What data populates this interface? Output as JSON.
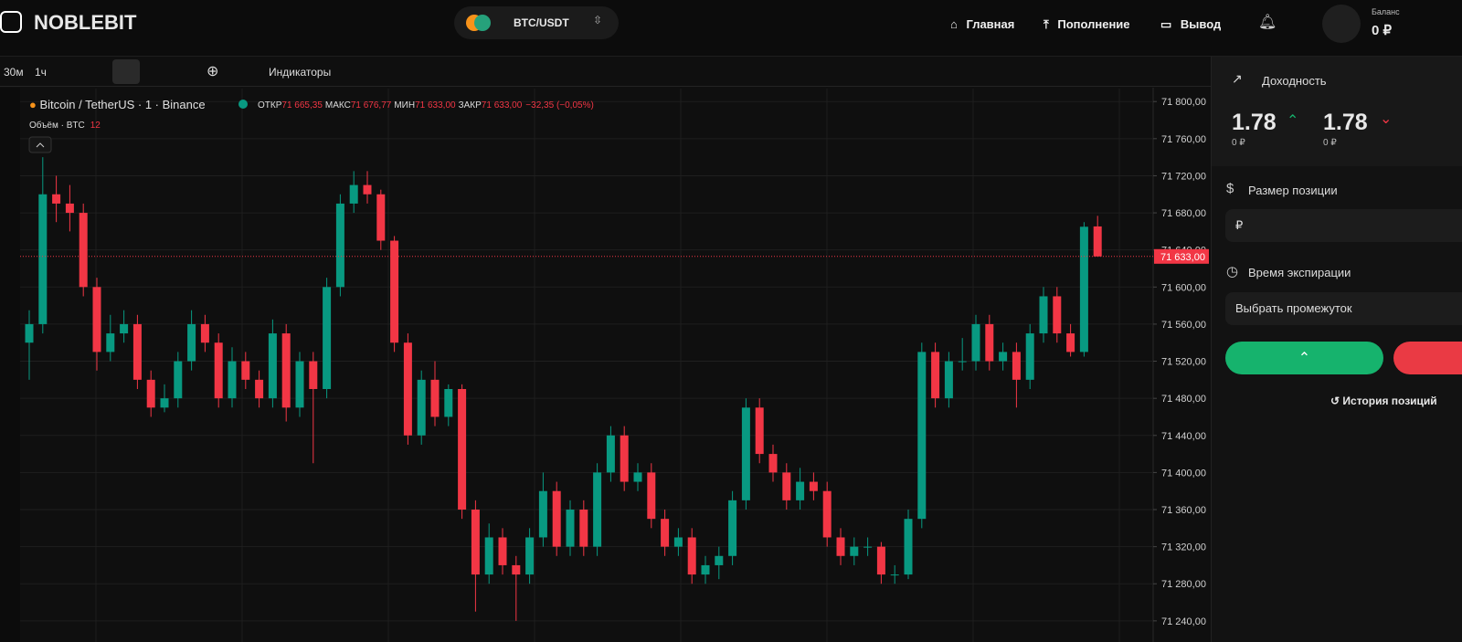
{
  "header": {
    "logo": "NOBLEBIT",
    "pair": "BTC/USDT",
    "nav": [
      "Главная",
      "Пополнение",
      "Вывод"
    ],
    "balance_label": "Баланс",
    "balance": "0 ₽"
  },
  "toolbar": {
    "intervals": [
      "30м",
      "1ч"
    ],
    "indicators": "Индикаторы"
  },
  "legend": {
    "symbol": "Bitcoin / TetherUS · 1 · Binance",
    "open_label": "ОТКР",
    "open": "71 665,35",
    "high_label": "МАКС",
    "high": "71 676,77",
    "low_label": "МИН",
    "low": "71 633,00",
    "close_label": "ЗАКР",
    "close": "71 633,00",
    "change": "−32,35 (−0,05%)",
    "volume_label": "Объём · BTC",
    "volume": "12"
  },
  "chart_data": {
    "type": "candlestick",
    "ylim": [
      71231,
      71814
    ],
    "yticks": [
      {
        "value": 71240,
        "label": "71 240,00"
      },
      {
        "value": 71280,
        "label": "71 280,00"
      },
      {
        "value": 71320,
        "label": "71 320,00"
      },
      {
        "value": 71360,
        "label": "71 360,00"
      },
      {
        "value": 71400,
        "label": "71 400,00"
      },
      {
        "value": 71440,
        "label": "71 440,00"
      },
      {
        "value": 71480,
        "label": "71 480,00"
      },
      {
        "value": 71520,
        "label": "71 520,00"
      },
      {
        "value": 71560,
        "label": "71 560,00"
      },
      {
        "value": 71600,
        "label": "71 600,00"
      },
      {
        "value": 71640,
        "label": "71 640,00"
      },
      {
        "value": 71680,
        "label": "71 680,00"
      },
      {
        "value": 71720,
        "label": "71 720,00"
      },
      {
        "value": 71760,
        "label": "71 760,00"
      },
      {
        "value": 71800,
        "label": "71 800,00"
      }
    ],
    "grid": true,
    "colors": {
      "up": "#089981",
      "down": "#f23645"
    },
    "last_price": {
      "value": 71633,
      "label": "71 633,00"
    },
    "candles": [
      [
        71540,
        71575,
        71500,
        71560
      ],
      [
        71560,
        71740,
        71550,
        71700
      ],
      [
        71700,
        71720,
        71670,
        71690
      ],
      [
        71690,
        71710,
        71660,
        71680
      ],
      [
        71680,
        71690,
        71590,
        71600
      ],
      [
        71600,
        71610,
        71510,
        71530
      ],
      [
        71530,
        71570,
        71520,
        71550
      ],
      [
        71550,
        71575,
        71540,
        71560
      ],
      [
        71560,
        71570,
        71490,
        71500
      ],
      [
        71500,
        71510,
        71460,
        71470
      ],
      [
        71470,
        71495,
        71465,
        71480
      ],
      [
        71480,
        71530,
        71470,
        71520
      ],
      [
        71520,
        71575,
        71510,
        71560
      ],
      [
        71560,
        71570,
        71530,
        71540
      ],
      [
        71540,
        71550,
        71470,
        71480
      ],
      [
        71480,
        71535,
        71470,
        71520
      ],
      [
        71520,
        71530,
        71490,
        71500
      ],
      [
        71500,
        71510,
        71470,
        71480
      ],
      [
        71480,
        71565,
        71470,
        71550
      ],
      [
        71550,
        71560,
        71455,
        71470
      ],
      [
        71470,
        71530,
        71460,
        71520
      ],
      [
        71520,
        71530,
        71410,
        71490
      ],
      [
        71490,
        71610,
        71480,
        71600
      ],
      [
        71600,
        71700,
        71590,
        71690
      ],
      [
        71690,
        71725,
        71680,
        71710
      ],
      [
        71710,
        71725,
        71690,
        71700
      ],
      [
        71700,
        71705,
        71640,
        71650
      ],
      [
        71650,
        71655,
        71530,
        71540
      ],
      [
        71540,
        71550,
        71430,
        71440
      ],
      [
        71440,
        71510,
        71430,
        71500
      ],
      [
        71500,
        71520,
        71450,
        71460
      ],
      [
        71460,
        71495,
        71450,
        71490
      ],
      [
        71490,
        71495,
        71350,
        71360
      ],
      [
        71360,
        71370,
        71250,
        71290
      ],
      [
        71290,
        71345,
        71280,
        71330
      ],
      [
        71330,
        71340,
        71290,
        71300
      ],
      [
        71300,
        71310,
        71240,
        71290
      ],
      [
        71290,
        71340,
        71280,
        71330
      ],
      [
        71330,
        71400,
        71320,
        71380
      ],
      [
        71380,
        71390,
        71310,
        71320
      ],
      [
        71320,
        71370,
        71310,
        71360
      ],
      [
        71360,
        71370,
        71310,
        71320
      ],
      [
        71320,
        71410,
        71310,
        71400
      ],
      [
        71400,
        71450,
        71390,
        71440
      ],
      [
        71440,
        71450,
        71380,
        71390
      ],
      [
        71390,
        71410,
        71380,
        71400
      ],
      [
        71400,
        71410,
        71340,
        71350
      ],
      [
        71350,
        71360,
        71310,
        71320
      ],
      [
        71320,
        71340,
        71310,
        71330
      ],
      [
        71330,
        71340,
        71280,
        71290
      ],
      [
        71290,
        71310,
        71280,
        71300
      ],
      [
        71300,
        71320,
        71285,
        71310
      ],
      [
        71310,
        71380,
        71300,
        71370
      ],
      [
        71370,
        71480,
        71360,
        71470
      ],
      [
        71470,
        71480,
        71410,
        71420
      ],
      [
        71420,
        71430,
        71390,
        71400
      ],
      [
        71400,
        71410,
        71360,
        71370
      ],
      [
        71370,
        71405,
        71360,
        71390
      ],
      [
        71390,
        71400,
        71370,
        71380
      ],
      [
        71380,
        71390,
        71320,
        71330
      ],
      [
        71330,
        71340,
        71300,
        71310
      ],
      [
        71310,
        71330,
        71300,
        71320
      ],
      [
        71320,
        71330,
        71310,
        71320
      ],
      [
        71320,
        71325,
        71280,
        71290
      ],
      [
        71290,
        71300,
        71280,
        71290
      ],
      [
        71290,
        71360,
        71285,
        71350
      ],
      [
        71350,
        71540,
        71340,
        71530
      ],
      [
        71530,
        71540,
        71470,
        71480
      ],
      [
        71480,
        71530,
        71470,
        71520
      ],
      [
        71520,
        71545,
        71510,
        71520
      ],
      [
        71520,
        71570,
        71510,
        71560
      ],
      [
        71560,
        71570,
        71510,
        71520
      ],
      [
        71520,
        71540,
        71510,
        71530
      ],
      [
        71530,
        71540,
        71470,
        71500
      ],
      [
        71500,
        71560,
        71490,
        71550
      ],
      [
        71550,
        71600,
        71540,
        71590
      ],
      [
        71590,
        71600,
        71540,
        71550
      ],
      [
        71550,
        71560,
        71525,
        71530
      ],
      [
        71530,
        71670,
        71525,
        71665
      ],
      [
        71665.35,
        71676.77,
        71633,
        71633
      ]
    ]
  },
  "panel": {
    "payout_title": "Доходность",
    "up_payout": "1.78",
    "up_amount": "0 ₽",
    "down_payout": "1.78",
    "down_amount": "0 ₽",
    "size_label": "Размер позиции",
    "size_placeholder": "₽",
    "expiry_label": "Время экспирации",
    "expiry_placeholder": "Выбрать промежуток",
    "history": "История позиций"
  }
}
